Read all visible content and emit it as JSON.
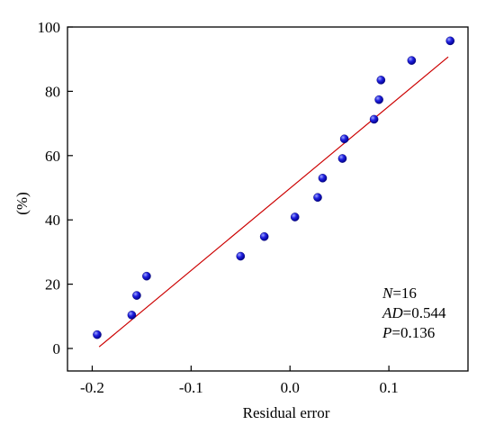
{
  "chart_data": {
    "type": "scatter",
    "xlabel": "Residual error",
    "ylabel": "(%)",
    "xlim": [
      -0.225,
      0.18
    ],
    "ylim": [
      -7,
      100
    ],
    "x_ticks": [
      -0.2,
      -0.1,
      0.0,
      0.1
    ],
    "x_tick_labels": [
      "-0.2",
      "-0.1",
      "0.0",
      "0.1"
    ],
    "y_ticks": [
      0,
      20,
      40,
      60,
      80,
      100
    ],
    "y_tick_labels": [
      "0",
      "20",
      "40",
      "60",
      "80",
      "100"
    ],
    "grid": false,
    "points": [
      {
        "x": -0.195,
        "y": 4.3
      },
      {
        "x": -0.16,
        "y": 10.4
      },
      {
        "x": -0.155,
        "y": 16.5
      },
      {
        "x": -0.145,
        "y": 22.5
      },
      {
        "x": -0.05,
        "y": 28.7
      },
      {
        "x": -0.026,
        "y": 34.8
      },
      {
        "x": 0.005,
        "y": 40.9
      },
      {
        "x": 0.028,
        "y": 47.0
      },
      {
        "x": 0.033,
        "y": 53.0
      },
      {
        "x": 0.053,
        "y": 59.1
      },
      {
        "x": 0.055,
        "y": 65.2
      },
      {
        "x": 0.085,
        "y": 71.3
      },
      {
        "x": 0.09,
        "y": 77.4
      },
      {
        "x": 0.092,
        "y": 83.5
      },
      {
        "x": 0.123,
        "y": 89.6
      },
      {
        "x": 0.162,
        "y": 95.7
      }
    ],
    "fit_line": {
      "x": [
        -0.193,
        0.16
      ],
      "y": [
        0.5,
        90.7
      ]
    },
    "marker_color": "#1a1ad6",
    "line_color": "#cc0000",
    "annotations": {
      "n_label": "N",
      "n_value": "=16",
      "ad_label": "AD",
      "ad_value": "=0.544",
      "p_label": "P",
      "p_value": "=0.136"
    }
  }
}
